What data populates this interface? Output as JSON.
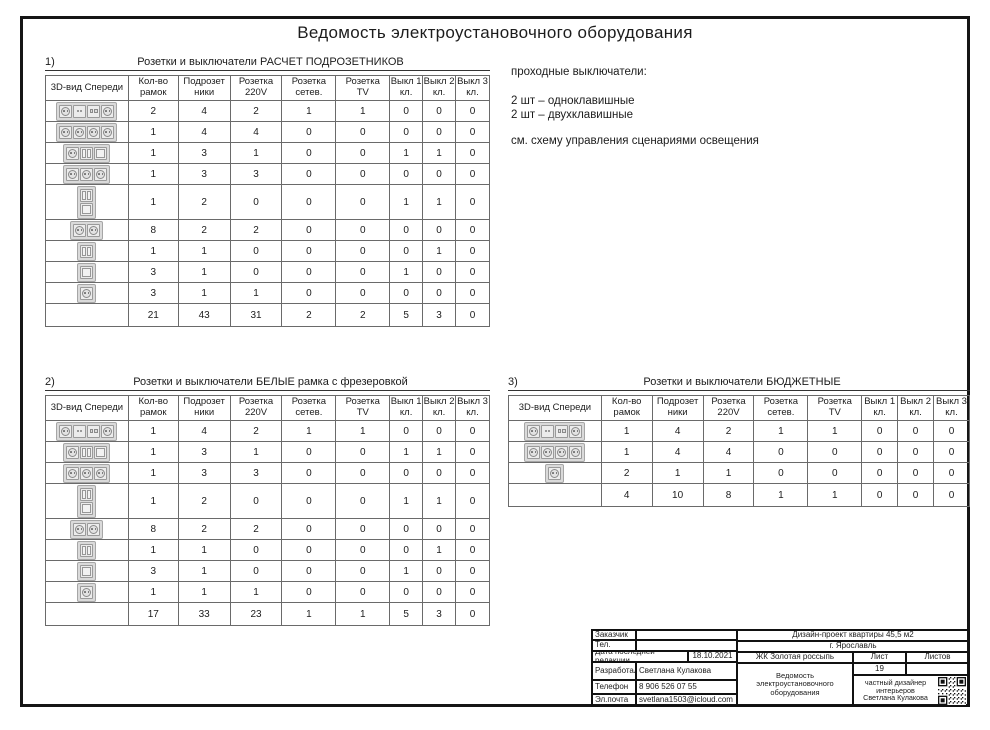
{
  "page_title": "Ведомость электроустановочного оборудования",
  "columns": [
    "3D-вид Спереди",
    "Кол-во\nрамок",
    "Подрозет\nники",
    "Розетка\n220V",
    "Розетка\nсетев.",
    "Розетка\nTV",
    "Выкл 1\nкл.",
    "Выкл 2\nкл.",
    "Выкл 3\nкл."
  ],
  "tables": [
    {
      "num": "1)",
      "title": "Розетки и выключатели РАСЧЕТ ПОДРОЗЕТНИКОВ",
      "rows": [
        {
          "icon": {
            "dir": "h",
            "modules": [
              "socket",
              "net",
              "tv",
              "socket"
            ]
          },
          "values": [
            "2",
            "4",
            "2",
            "1",
            "1",
            "0",
            "0",
            "0"
          ]
        },
        {
          "icon": {
            "dir": "h",
            "modules": [
              "socket",
              "socket",
              "socket",
              "socket"
            ]
          },
          "values": [
            "1",
            "4",
            "4",
            "0",
            "0",
            "0",
            "0",
            "0"
          ]
        },
        {
          "icon": {
            "dir": "h",
            "modules": [
              "socket",
              "sw2",
              "sw1"
            ]
          },
          "values": [
            "1",
            "3",
            "1",
            "0",
            "0",
            "1",
            "1",
            "0"
          ]
        },
        {
          "icon": {
            "dir": "h",
            "modules": [
              "socket",
              "socket",
              "socket"
            ]
          },
          "values": [
            "1",
            "3",
            "3",
            "0",
            "0",
            "0",
            "0",
            "0"
          ]
        },
        {
          "icon": {
            "dir": "v",
            "modules": [
              "sw2",
              "sw1"
            ]
          },
          "values": [
            "1",
            "2",
            "0",
            "0",
            "0",
            "1",
            "1",
            "0"
          ]
        },
        {
          "icon": {
            "dir": "h",
            "modules": [
              "socket",
              "socket"
            ]
          },
          "values": [
            "8",
            "2",
            "2",
            "0",
            "0",
            "0",
            "0",
            "0"
          ]
        },
        {
          "icon": {
            "dir": "h",
            "modules": [
              "sw2"
            ]
          },
          "values": [
            "1",
            "1",
            "0",
            "0",
            "0",
            "0",
            "1",
            "0"
          ]
        },
        {
          "icon": {
            "dir": "h",
            "modules": [
              "sw1"
            ]
          },
          "values": [
            "3",
            "1",
            "0",
            "0",
            "0",
            "1",
            "0",
            "0"
          ]
        },
        {
          "icon": {
            "dir": "h",
            "modules": [
              "socket"
            ]
          },
          "values": [
            "3",
            "1",
            "1",
            "0",
            "0",
            "0",
            "0",
            "0"
          ]
        }
      ],
      "totals": [
        "21",
        "43",
        "31",
        "2",
        "2",
        "5",
        "3",
        "0"
      ]
    },
    {
      "num": "2)",
      "title": "Розетки и выключатели БЕЛЫЕ рамка с фрезеровкой",
      "rows": [
        {
          "icon": {
            "dir": "h",
            "modules": [
              "socket",
              "net",
              "tv",
              "socket"
            ]
          },
          "values": [
            "1",
            "4",
            "2",
            "1",
            "1",
            "0",
            "0",
            "0"
          ]
        },
        {
          "icon": {
            "dir": "h",
            "modules": [
              "socket",
              "sw2",
              "sw1"
            ]
          },
          "values": [
            "1",
            "3",
            "1",
            "0",
            "0",
            "1",
            "1",
            "0"
          ]
        },
        {
          "icon": {
            "dir": "h",
            "modules": [
              "socket",
              "socket",
              "socket"
            ]
          },
          "values": [
            "1",
            "3",
            "3",
            "0",
            "0",
            "0",
            "0",
            "0"
          ]
        },
        {
          "icon": {
            "dir": "v",
            "modules": [
              "sw2",
              "sw1"
            ]
          },
          "values": [
            "1",
            "2",
            "0",
            "0",
            "0",
            "1",
            "1",
            "0"
          ]
        },
        {
          "icon": {
            "dir": "h",
            "modules": [
              "socket",
              "socket"
            ]
          },
          "values": [
            "8",
            "2",
            "2",
            "0",
            "0",
            "0",
            "0",
            "0"
          ]
        },
        {
          "icon": {
            "dir": "h",
            "modules": [
              "sw2"
            ]
          },
          "values": [
            "1",
            "1",
            "0",
            "0",
            "0",
            "0",
            "1",
            "0"
          ]
        },
        {
          "icon": {
            "dir": "h",
            "modules": [
              "sw1"
            ]
          },
          "values": [
            "3",
            "1",
            "0",
            "0",
            "0",
            "1",
            "0",
            "0"
          ]
        },
        {
          "icon": {
            "dir": "h",
            "modules": [
              "socket"
            ]
          },
          "values": [
            "1",
            "1",
            "1",
            "0",
            "0",
            "0",
            "0",
            "0"
          ]
        }
      ],
      "totals": [
        "17",
        "33",
        "23",
        "1",
        "1",
        "5",
        "3",
        "0"
      ]
    },
    {
      "num": "3)",
      "title": "Розетки и выключатели БЮДЖЕТНЫЕ",
      "rows": [
        {
          "icon": {
            "dir": "h",
            "modules": [
              "socket",
              "net",
              "tv",
              "socket"
            ]
          },
          "values": [
            "1",
            "4",
            "2",
            "1",
            "1",
            "0",
            "0",
            "0"
          ]
        },
        {
          "icon": {
            "dir": "h",
            "modules": [
              "socket",
              "socket",
              "socket",
              "socket"
            ]
          },
          "values": [
            "1",
            "4",
            "4",
            "0",
            "0",
            "0",
            "0",
            "0"
          ]
        },
        {
          "icon": {
            "dir": "h",
            "modules": [
              "socket"
            ]
          },
          "values": [
            "2",
            "1",
            "1",
            "0",
            "0",
            "0",
            "0",
            "0"
          ]
        }
      ],
      "totals": [
        "4",
        "10",
        "8",
        "1",
        "1",
        "0",
        "0",
        "0"
      ]
    }
  ],
  "notes": {
    "line1": "проходные выключатели:",
    "line2": "2 шт – одноклавишные",
    "line3": "2 шт – двухклавишные",
    "line4": "см. схему управления сценариями освещения"
  },
  "title_block": {
    "customer_label": "Заказчик",
    "tel_label": "Тел.",
    "date_label": "Дата последней редакции",
    "date_value": "18.10.2021",
    "developed_label": "Разработал",
    "developed_value": "Светлана Кулакова",
    "phone_label": "Телефон",
    "phone_value": "8 906 526 07 55",
    "email_label": "Эл.почта",
    "email_value": "svetlana1503@icloud.com",
    "project": "Дизайн-проект квартиры 45,5 м2",
    "city": "г. Ярославль",
    "complex": "ЖК Золотая россыпь",
    "sheet_label": "Лист",
    "sheets_label": "Листов",
    "sheet_value": "19",
    "doc_title": "Ведомость\nэлектроустановочного\nоборудования",
    "designer": "частный дизайнер\nинтерьеров\nСветлана Кулакова"
  }
}
